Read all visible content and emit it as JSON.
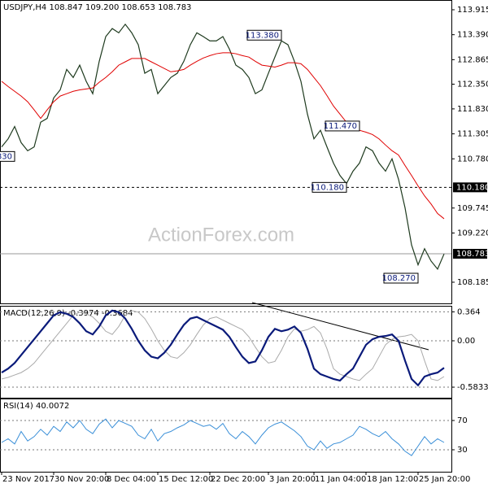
{
  "chart_data": [
    {
      "type": "line",
      "title": "USDJPY,H4 108.847 109.200 108.653 108.783",
      "watermark": "ActionForex.com",
      "ylim": [
        107.74,
        114.12
      ],
      "yticks": [
        {
          "value": 113.915,
          "label": "113.915"
        },
        {
          "value": 113.39,
          "label": "113.390"
        },
        {
          "value": 112.865,
          "label": "112.865"
        },
        {
          "value": 112.35,
          "label": "112.350"
        },
        {
          "value": 111.83,
          "label": "111.830"
        },
        {
          "value": 111.305,
          "label": "111.305"
        },
        {
          "value": 110.78,
          "label": "110.780"
        },
        {
          "value": 109.745,
          "label": "109.745"
        },
        {
          "value": 109.22,
          "label": "109.220"
        },
        {
          "value": 108.185,
          "label": "108.185"
        }
      ],
      "series": [
        {
          "color": "#1e3a1e",
          "width": 1.2,
          "values": [
            111.03,
            111.2,
            111.46,
            111.12,
            110.95,
            111.03,
            111.55,
            111.63,
            112.06,
            112.23,
            112.66,
            112.49,
            112.75,
            112.41,
            112.15,
            112.83,
            113.35,
            113.52,
            113.43,
            113.61,
            113.43,
            113.18,
            112.58,
            112.66,
            112.15,
            112.32,
            112.49,
            112.58,
            112.83,
            113.18,
            113.43,
            113.35,
            113.26,
            113.26,
            113.35,
            113.09,
            112.75,
            112.66,
            112.49,
            112.15,
            112.23,
            112.58,
            112.92,
            113.26,
            113.18,
            112.83,
            112.41,
            111.72,
            111.2,
            111.38,
            111.03,
            110.69,
            110.43,
            110.26,
            110.52,
            110.69,
            111.03,
            110.95,
            110.69,
            110.52,
            110.78,
            110.35,
            109.75,
            108.97,
            108.55,
            108.89,
            108.63,
            108.46,
            108.78
          ]
        },
        {
          "color": "#e00000",
          "width": 1,
          "values": [
            112.41,
            112.3,
            112.2,
            112.1,
            111.98,
            111.81,
            111.63,
            111.81,
            111.98,
            112.1,
            112.15,
            112.2,
            112.23,
            112.25,
            112.27,
            112.39,
            112.49,
            112.61,
            112.75,
            112.82,
            112.89,
            112.89,
            112.89,
            112.82,
            112.75,
            112.68,
            112.61,
            112.63,
            112.66,
            112.75,
            112.83,
            112.9,
            112.95,
            112.99,
            113.01,
            113.01,
            112.99,
            112.95,
            112.92,
            112.83,
            112.75,
            112.73,
            112.71,
            112.75,
            112.8,
            112.8,
            112.78,
            112.66,
            112.49,
            112.32,
            112.11,
            111.89,
            111.72,
            111.55,
            111.46,
            111.38,
            111.34,
            111.29,
            111.2,
            111.07,
            110.95,
            110.86,
            110.64,
            110.43,
            110.21,
            110.0,
            109.83,
            109.63,
            109.52
          ]
        }
      ],
      "hlines": [
        {
          "value": 110.18,
          "label": "110.180",
          "style": "dashed"
        },
        {
          "value": 108.783,
          "label": "108.783",
          "style": "solid"
        }
      ],
      "annotations": [
        {
          "label": "830",
          "x": 2,
          "value": 110.83
        },
        {
          "label": "113.380",
          "x": 43,
          "value": 113.38
        },
        {
          "label": "111.470",
          "x": 55,
          "value": 111.47
        },
        {
          "label": "110.180",
          "x": 53,
          "value": 110.18
        },
        {
          "label": "108.270",
          "x": 64,
          "value": 108.27
        }
      ]
    },
    {
      "type": "line",
      "title": "MACD(12,26,9) -0.3974 -0.3684",
      "ylim": [
        -0.716,
        0.44
      ],
      "grid": true,
      "yticks": [
        0.364,
        {
          "value": 0,
          "label": "0.00"
        },
        -0.5833
      ],
      "series": [
        {
          "color": "#aaaaaa",
          "width": 1,
          "values": [
            -0.48,
            -0.46,
            -0.43,
            -0.4,
            -0.35,
            -0.28,
            -0.18,
            -0.08,
            0.02,
            0.12,
            0.22,
            0.32,
            0.36,
            0.34,
            0.3,
            0.22,
            0.12,
            0.08,
            0.18,
            0.32,
            0.38,
            0.36,
            0.28,
            0.15,
            0.0,
            -0.12,
            -0.2,
            -0.22,
            -0.15,
            -0.05,
            0.08,
            0.2,
            0.28,
            0.3,
            0.26,
            0.22,
            0.18,
            0.14,
            0.05,
            -0.08,
            -0.2,
            -0.28,
            -0.26,
            -0.12,
            0.05,
            0.15,
            0.12,
            0.14,
            0.18,
            0.1,
            -0.1,
            -0.35,
            -0.42,
            -0.45,
            -0.48,
            -0.5,
            -0.42,
            -0.35,
            -0.2,
            -0.05,
            0.02,
            0.05,
            0.06,
            0.08,
            0.0,
            -0.25,
            -0.48,
            -0.5,
            -0.45
          ]
        },
        {
          "color": "#0a1a7a",
          "width": 2.2,
          "values": [
            -0.4,
            -0.35,
            -0.28,
            -0.18,
            -0.08,
            0.02,
            0.12,
            0.22,
            0.32,
            0.36,
            0.34,
            0.3,
            0.22,
            0.12,
            0.08,
            0.18,
            0.32,
            0.38,
            0.36,
            0.28,
            0.15,
            0.0,
            -0.12,
            -0.2,
            -0.22,
            -0.15,
            -0.05,
            0.08,
            0.2,
            0.28,
            0.3,
            0.26,
            0.22,
            0.18,
            0.14,
            0.05,
            -0.08,
            -0.2,
            -0.28,
            -0.26,
            -0.12,
            0.05,
            0.15,
            0.12,
            0.14,
            0.18,
            0.1,
            -0.1,
            -0.35,
            -0.42,
            -0.45,
            -0.48,
            -0.5,
            -0.42,
            -0.35,
            -0.2,
            -0.05,
            0.02,
            0.05,
            0.06,
            0.08,
            0.0,
            -0.25,
            -0.48,
            -0.56,
            -0.45,
            -0.42,
            -0.4,
            -0.34
          ]
        }
      ]
    },
    {
      "type": "line",
      "title": "RSI(14) 40.0072",
      "ylim": [
        0,
        100
      ],
      "grid": true,
      "yticks": [
        70,
        30
      ],
      "series": [
        {
          "color": "#3a8fd8",
          "width": 1,
          "values": [
            40,
            45,
            38,
            55,
            42,
            48,
            58,
            50,
            62,
            55,
            68,
            60,
            70,
            58,
            52,
            65,
            72,
            60,
            70,
            66,
            62,
            50,
            45,
            58,
            42,
            52,
            55,
            60,
            64,
            70,
            66,
            62,
            64,
            58,
            66,
            52,
            45,
            55,
            48,
            38,
            50,
            60,
            65,
            68,
            62,
            56,
            48,
            35,
            30,
            42,
            32,
            38,
            40,
            45,
            50,
            62,
            58,
            52,
            48,
            55,
            45,
            38,
            28,
            22,
            35,
            48,
            38,
            45,
            40
          ]
        }
      ],
      "xticks": [
        {
          "value": 0,
          "label": "23 Nov 2017"
        },
        {
          "value": 8,
          "label": "30 Nov 20:00"
        },
        {
          "value": 16,
          "label": "8 Dec 04:00"
        },
        {
          "value": 24,
          "label": "15 Dec 12:00"
        },
        {
          "value": 32,
          "label": "22 Dec 20:00"
        },
        {
          "value": 41,
          "label": "3 Jan 20:00"
        },
        {
          "value": 48,
          "label": "11 Jan 04:00"
        },
        {
          "value": 56,
          "label": "18 Jan 12:00"
        },
        {
          "value": 64,
          "label": "25 Jan 20:00"
        }
      ]
    }
  ]
}
